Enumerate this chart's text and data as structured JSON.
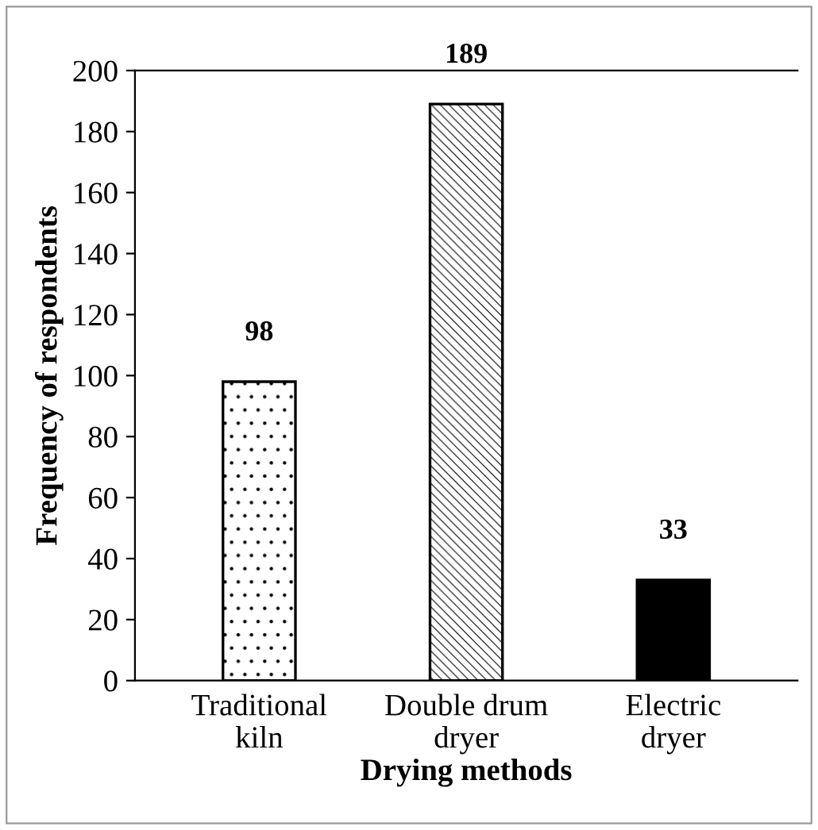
{
  "chart_data": {
    "type": "bar",
    "xlabel": "Drying methods",
    "ylabel": "Frequency of respondents",
    "categories": [
      "Traditional kiln",
      "Double drum dryer",
      "Electric dryer"
    ],
    "values": [
      98,
      189,
      33
    ],
    "colors": [
      "#ffffff",
      "#ffffff",
      "#000000"
    ],
    "ylim": [
      0,
      200
    ],
    "yticks": [
      0,
      20,
      40,
      60,
      80,
      100,
      120,
      140,
      160,
      180,
      200
    ],
    "data_labels": true,
    "grid": false,
    "legend": false
  }
}
